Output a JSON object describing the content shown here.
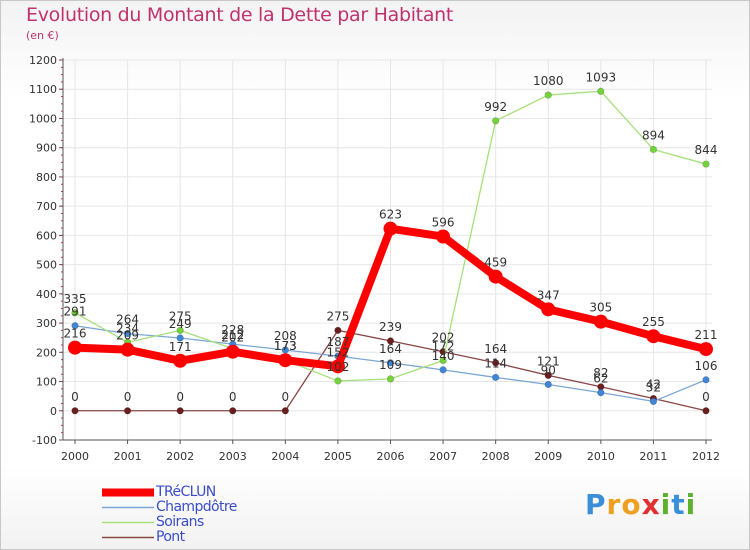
{
  "title": "Evolution du Montant de la Dette par Habitant",
  "subtitle": "(en €)",
  "colors": {
    "title": "#c0326e",
    "axis": "#555555",
    "grid": "#e6e6e6",
    "legend_text": "#3a4ec8"
  },
  "brand": {
    "letters": [
      "P",
      "r",
      "o",
      "x",
      "i",
      "t",
      "i"
    ],
    "colors": [
      "#3a8fd8",
      "#f0a020",
      "#f0a020",
      "#e03030",
      "#60b030",
      "#3a8fd8",
      "#60b030"
    ]
  },
  "chart_data": {
    "type": "line",
    "title": "Evolution du Montant de la Dette par Habitant",
    "subtitle": "(en €)",
    "xlabel": "",
    "ylabel": "",
    "categories": [
      "2000",
      "2001",
      "2002",
      "2003",
      "2004",
      "2005",
      "2006",
      "2007",
      "2008",
      "2009",
      "2010",
      "2011",
      "2012"
    ],
    "ylim": [
      -100,
      1200
    ],
    "yticks": [
      -100,
      0,
      100,
      200,
      300,
      400,
      500,
      600,
      700,
      800,
      900,
      1000,
      1100,
      1200
    ],
    "grid": true,
    "legend_position": "bottom-left",
    "series": [
      {
        "name": "TRéCLUN",
        "color": "#ff0000",
        "point_color": "#ff0000",
        "width": 8,
        "point_r": 7,
        "values": [
          216,
          209,
          171,
          202,
          173,
          152,
          623,
          596,
          459,
          347,
          305,
          255,
          211
        ]
      },
      {
        "name": "Champdôtre",
        "color": "#7ba7d6",
        "point_color": "#3f86d6",
        "width": 1.3,
        "point_r": 3.3,
        "values": [
          291,
          264,
          249,
          228,
          208,
          187,
          164,
          140,
          114,
          90,
          62,
          32,
          106
        ]
      },
      {
        "name": "Soirans",
        "color": "#a6e07a",
        "point_color": "#74d33a",
        "width": 1.3,
        "point_r": 3.3,
        "values": [
          335,
          234,
          275,
          212,
          173,
          102,
          109,
          172,
          992,
          1080,
          1093,
          894,
          844
        ]
      },
      {
        "name": "Pont",
        "color": "#8a4545",
        "point_color": "#6b1e1e",
        "width": 1.3,
        "point_r": 3.3,
        "values": [
          0,
          0,
          0,
          0,
          0,
          275,
          239,
          202,
          164,
          121,
          82,
          42,
          0
        ]
      }
    ],
    "data_labels": [
      {
        "series": 0,
        "labels": [
          "216",
          "209",
          "171",
          "202",
          "173",
          "152",
          "623",
          "596",
          "459",
          "347",
          "305",
          "255",
          "211"
        ]
      },
      {
        "series": 1,
        "labels": [
          "291",
          "264",
          "249",
          "228",
          "208",
          "187",
          "164",
          "140",
          "114",
          "90",
          "62",
          "32",
          "106"
        ]
      },
      {
        "series": 2,
        "labels": [
          "335",
          "234",
          "275",
          "212",
          "173",
          "102",
          "109",
          "172",
          "992",
          "1080",
          "1093",
          "894",
          "844"
        ]
      },
      {
        "series": 3,
        "labels": [
          "0",
          "0",
          "0",
          "0",
          "0",
          "275",
          "239",
          "202",
          "164",
          "121",
          "82",
          "42",
          "0"
        ]
      }
    ]
  }
}
